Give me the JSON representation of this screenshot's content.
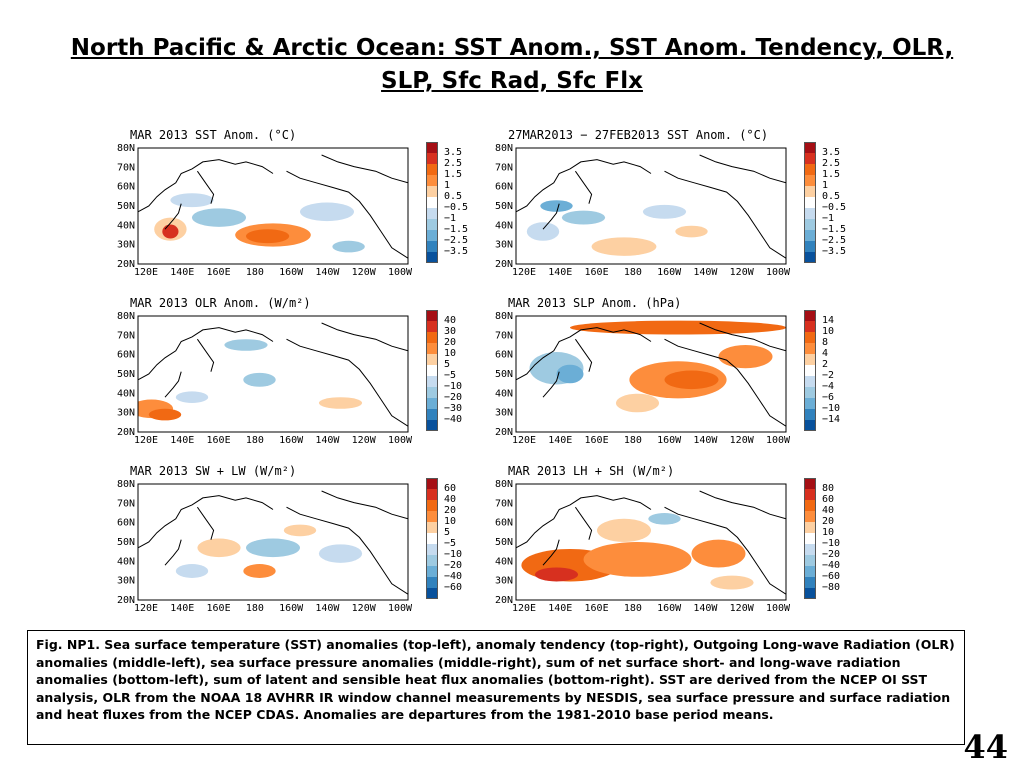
{
  "title": "North Pacific & Arctic Ocean: SST Anom., SST Anom. Tendency, OLR, SLP, Sfc Rad, Sfc Flx",
  "lat_labels": [
    "80N",
    "70N",
    "60N",
    "50N",
    "40N",
    "30N",
    "20N"
  ],
  "lon_labels": [
    "120E",
    "140E",
    "160E",
    "180",
    "160W",
    "140W",
    "120W",
    "100W"
  ],
  "panels": [
    {
      "id": "sst-anom",
      "title": "MAR 2013 SST Anom. (°C)",
      "colorbar": [
        "3.5",
        "2.5",
        "1.5",
        "1",
        "0.5",
        "−0.5",
        "−1",
        "−1.5",
        "−2.5",
        "−3.5"
      ],
      "colors": [
        "#a50f15",
        "#d7301f",
        "#f16913",
        "#fd8d3c",
        "#fdd0a2",
        "#ffffff",
        "#c6dbef",
        "#9ecae1",
        "#6baed6",
        "#3182bd",
        "#08519c"
      ]
    },
    {
      "id": "sst-tendency",
      "title": "27MAR2013 − 27FEB2013 SST Anom. (°C)",
      "colorbar": [
        "3.5",
        "2.5",
        "1.5",
        "1",
        "0.5",
        "−0.5",
        "−1",
        "−1.5",
        "−2.5",
        "−3.5"
      ],
      "colors": [
        "#a50f15",
        "#d7301f",
        "#f16913",
        "#fd8d3c",
        "#fdd0a2",
        "#ffffff",
        "#c6dbef",
        "#9ecae1",
        "#6baed6",
        "#3182bd",
        "#08519c"
      ]
    },
    {
      "id": "olr-anom",
      "title": "MAR 2013 OLR Anom. (W/m²)",
      "colorbar": [
        "40",
        "30",
        "20",
        "10",
        "5",
        "−5",
        "−10",
        "−20",
        "−30",
        "−40"
      ],
      "colors": [
        "#a50f15",
        "#d7301f",
        "#f16913",
        "#fd8d3c",
        "#fdd0a2",
        "#ffffff",
        "#c6dbef",
        "#9ecae1",
        "#6baed6",
        "#3182bd",
        "#08519c"
      ]
    },
    {
      "id": "slp-anom",
      "title": "MAR 2013 SLP Anom. (hPa)",
      "colorbar": [
        "14",
        "10",
        "8",
        "4",
        "2",
        "−2",
        "−4",
        "−6",
        "−10",
        "−14"
      ],
      "colors": [
        "#a50f15",
        "#d7301f",
        "#f16913",
        "#fd8d3c",
        "#fdd0a2",
        "#ffffff",
        "#c6dbef",
        "#9ecae1",
        "#6baed6",
        "#3182bd",
        "#08519c"
      ]
    },
    {
      "id": "sw-lw",
      "title": "MAR 2013 SW + LW (W/m²)",
      "colorbar": [
        "60",
        "40",
        "20",
        "10",
        "5",
        "−5",
        "−10",
        "−20",
        "−40",
        "−60"
      ],
      "colors": [
        "#a50f15",
        "#d7301f",
        "#f16913",
        "#fd8d3c",
        "#fdd0a2",
        "#ffffff",
        "#c6dbef",
        "#9ecae1",
        "#6baed6",
        "#3182bd",
        "#08519c"
      ]
    },
    {
      "id": "lh-sh",
      "title": "MAR 2013 LH + SH (W/m²)",
      "colorbar": [
        "80",
        "60",
        "40",
        "20",
        "10",
        "−10",
        "−20",
        "−40",
        "−60",
        "−80"
      ],
      "colors": [
        "#a50f15",
        "#d7301f",
        "#f16913",
        "#fd8d3c",
        "#fdd0a2",
        "#ffffff",
        "#c6dbef",
        "#9ecae1",
        "#6baed6",
        "#3182bd",
        "#08519c"
      ]
    }
  ],
  "caption": "Fig. NP1. Sea surface temperature (SST) anomalies (top-left), anomaly tendency (top-right), Outgoing Long-wave Radiation (OLR) anomalies (middle-left), sea surface pressure anomalies (middle-right), sum of net surface short- and long-wave radiation anomalies (bottom-left), sum of latent and sensible heat flux anomalies (bottom-right). SST are derived from the NCEP OI SST analysis, OLR from the NOAA 18 AVHRR IR window channel measurements by NESDIS, sea surface pressure and surface radiation and heat fluxes from the NCEP CDAS. Anomalies are departures from the 1981-2010  base period means.",
  "page_number": "44"
}
